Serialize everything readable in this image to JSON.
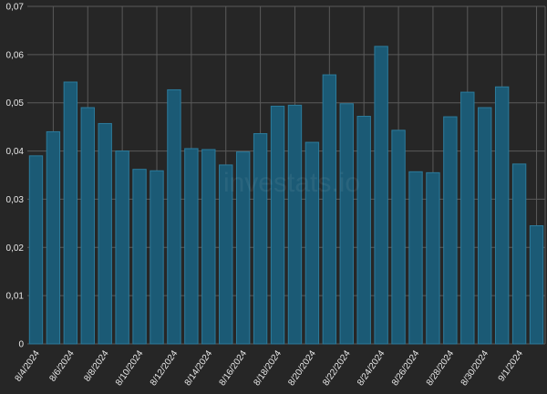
{
  "chart_data": {
    "type": "bar",
    "watermark": "investats.io",
    "categories": [
      "8/4/2024",
      null,
      "8/6/2024",
      null,
      "8/8/2024",
      null,
      "8/10/2024",
      null,
      "8/12/2024",
      null,
      "8/14/2024",
      null,
      "8/16/2024",
      null,
      "8/18/2024",
      null,
      "8/20/2024",
      null,
      "8/22/2024",
      null,
      "8/24/2024",
      null,
      "8/26/2024",
      null,
      "8/28/2024",
      null,
      "8/30/2024",
      null,
      "9/1/2024",
      null
    ],
    "values": [
      0.039,
      0.044,
      0.0543,
      0.049,
      0.0457,
      0.04,
      0.0362,
      0.0359,
      0.0527,
      0.0405,
      0.0403,
      0.0371,
      0.0398,
      0.0436,
      0.0493,
      0.0495,
      0.0418,
      0.0558,
      0.0498,
      0.0472,
      0.0617,
      0.0443,
      0.0357,
      0.0355,
      0.0471,
      0.0522,
      0.049,
      0.0533,
      0.0373,
      0.0245
    ],
    "color": "#1b5a75",
    "ylim": [
      0,
      0.07
    ],
    "yticks": [
      0,
      {
        "value": 0.01,
        "label": "0,01"
      },
      {
        "value": 0.02,
        "label": "0,02"
      },
      {
        "value": 0.03,
        "label": "0,03"
      },
      {
        "value": 0.04,
        "label": "0,04"
      },
      {
        "value": 0.05,
        "label": "0,05"
      },
      {
        "value": 0.06,
        "label": "0,06"
      },
      {
        "value": 0.07,
        "label": "0,07"
      }
    ],
    "grid": true
  }
}
